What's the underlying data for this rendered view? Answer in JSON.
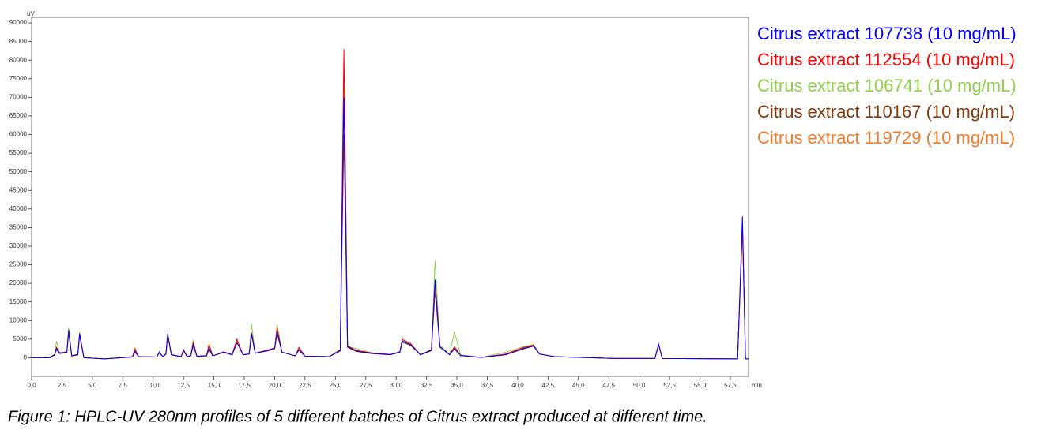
{
  "chart_data": {
    "type": "line",
    "x_label": "min",
    "y_label": "uV",
    "caption": "Figure 1: HPLC-UV 280nm profiles of 5 different batches of Citrus extract produced at different time.",
    "xlim": [
      0,
      59
    ],
    "ylim": [
      -5000,
      91500
    ],
    "xticks": [
      {
        "value": 0,
        "label": "0,0"
      },
      {
        "value": 2.5,
        "label": "2,5"
      },
      {
        "value": 5,
        "label": "5,0"
      },
      {
        "value": 7.5,
        "label": "7,5"
      },
      {
        "value": 10,
        "label": "10,0"
      },
      {
        "value": 12.5,
        "label": "12,5"
      },
      {
        "value": 15,
        "label": "15,0"
      },
      {
        "value": 17.5,
        "label": "17,5"
      },
      {
        "value": 20,
        "label": "20,0"
      },
      {
        "value": 22.5,
        "label": "22,5"
      },
      {
        "value": 25,
        "label": "25,0"
      },
      {
        "value": 27.5,
        "label": "27,5"
      },
      {
        "value": 30,
        "label": "30,0"
      },
      {
        "value": 32.5,
        "label": "32,5"
      },
      {
        "value": 35,
        "label": "35,0"
      },
      {
        "value": 37.5,
        "label": "37,5"
      },
      {
        "value": 40,
        "label": "40,0"
      },
      {
        "value": 42.5,
        "label": "42,5"
      },
      {
        "value": 45,
        "label": "45,0"
      },
      {
        "value": 47.5,
        "label": "47,5"
      },
      {
        "value": 50,
        "label": "50,0"
      },
      {
        "value": 52.5,
        "label": "52,5"
      },
      {
        "value": 55,
        "label": "55,0"
      },
      {
        "value": 57.5,
        "label": "57,5"
      }
    ],
    "yticks": [
      0,
      5000,
      10000,
      15000,
      20000,
      25000,
      30000,
      35000,
      40000,
      45000,
      50000,
      55000,
      60000,
      65000,
      70000,
      75000,
      80000,
      85000,
      90000
    ],
    "x": [
      0,
      1.5,
      1.9,
      2.05,
      2.3,
      2.9,
      3.05,
      3.3,
      3.8,
      3.95,
      4.3,
      6,
      8.3,
      8.5,
      8.8,
      10.3,
      10.5,
      10.8,
      11.05,
      11.2,
      11.5,
      12.3,
      12.5,
      12.8,
      13.1,
      13.3,
      13.6,
      14.4,
      14.6,
      14.9,
      15.8,
      16.5,
      16.9,
      17.4,
      17.9,
      18.1,
      18.4,
      19.5,
      20.0,
      20.2,
      20.6,
      21.7,
      22.0,
      22.5,
      24.5,
      25.4,
      25.7,
      26.0,
      26.7,
      28.0,
      29.5,
      30.3,
      30.5,
      31.2,
      32.0,
      32.9,
      33.2,
      33.6,
      34.4,
      34.8,
      35.3,
      37.0,
      39.0,
      40.5,
      41.3,
      41.8,
      43.0,
      48,
      51.3,
      51.6,
      51.9,
      58.1,
      58.5,
      58.75,
      59
    ],
    "series": [
      {
        "name": "Citrus extract 107738 (10 mg/mL)",
        "color": "#0000ff",
        "values": [
          0,
          0,
          800,
          2500,
          1200,
          1500,
          7500,
          500,
          800,
          6500,
          0,
          -300,
          200,
          1800,
          300,
          200,
          1500,
          300,
          1000,
          6500,
          800,
          300,
          2000,
          300,
          600,
          3500,
          400,
          500,
          2500,
          500,
          1500,
          800,
          4000,
          800,
          1000,
          6500,
          1200,
          2000,
          2500,
          7000,
          1500,
          500,
          2200,
          400,
          300,
          2000,
          70000,
          3000,
          1800,
          1200,
          800,
          1500,
          4500,
          3500,
          800,
          2000,
          21000,
          3000,
          800,
          2500,
          600,
          100,
          800,
          2500,
          3200,
          1000,
          300,
          -200,
          -200,
          3800,
          -200,
          -300,
          38000,
          -300,
          -300
        ]
      },
      {
        "name": "Citrus extract 112554 (10 mg/mL)",
        "color": "#ff0000",
        "values": [
          0,
          0,
          900,
          2800,
          1300,
          1600,
          7000,
          600,
          900,
          6000,
          0,
          -300,
          300,
          2500,
          300,
          200,
          1400,
          300,
          1100,
          6000,
          800,
          300,
          2200,
          300,
          600,
          4200,
          400,
          600,
          3500,
          500,
          1600,
          900,
          5000,
          800,
          1000,
          6800,
          1200,
          2200,
          2600,
          8000,
          1500,
          500,
          2800,
          400,
          300,
          2200,
          83000,
          3200,
          2000,
          1300,
          900,
          1600,
          5000,
          3800,
          800,
          2200,
          19000,
          3000,
          800,
          3000,
          600,
          100,
          1000,
          2800,
          3400,
          1000,
          300,
          -200,
          -200,
          3500,
          -200,
          -300,
          35000,
          -300,
          -300
        ]
      },
      {
        "name": "Citrus extract 106741 (10 mg/mL)",
        "color": "#92d050",
        "values": [
          0,
          0,
          1000,
          4500,
          1400,
          1500,
          8000,
          600,
          900,
          7000,
          0,
          -300,
          200,
          1800,
          300,
          200,
          1600,
          300,
          1000,
          6500,
          800,
          300,
          2000,
          300,
          600,
          4800,
          400,
          500,
          4000,
          500,
          1500,
          900,
          4500,
          800,
          1100,
          9000,
          1200,
          2100,
          2600,
          9000,
          1500,
          500,
          2500,
          400,
          300,
          2000,
          77000,
          3000,
          2500,
          1300,
          800,
          1500,
          4800,
          3600,
          800,
          2200,
          26000,
          3500,
          900,
          7000,
          800,
          100,
          1500,
          3000,
          3600,
          1000,
          300,
          -200,
          -200,
          3600,
          -200,
          -300,
          35000,
          -300,
          -300
        ]
      },
      {
        "name": "Citrus extract 110167 (10 mg/mL)",
        "color": "#843c0c",
        "values": [
          0,
          0,
          700,
          2200,
          1100,
          1400,
          6500,
          500,
          800,
          6000,
          0,
          -300,
          200,
          1500,
          300,
          200,
          1300,
          300,
          900,
          6000,
          800,
          300,
          1800,
          300,
          600,
          3200,
          400,
          500,
          2300,
          500,
          1400,
          800,
          4200,
          800,
          1000,
          6000,
          1200,
          1900,
          2400,
          6500,
          1500,
          500,
          2000,
          400,
          300,
          1800,
          60000,
          2800,
          1700,
          1100,
          800,
          1400,
          4200,
          3300,
          800,
          1900,
          18000,
          2800,
          800,
          2400,
          600,
          100,
          800,
          2400,
          3100,
          1000,
          300,
          -200,
          -200,
          3500,
          -200,
          -300,
          35000,
          -300,
          -300
        ]
      },
      {
        "name": "Citrus extract 119729 (10 mg/mL)",
        "color": "#ed7d31",
        "values": [
          0,
          0,
          800,
          2600,
          1200,
          1500,
          7200,
          500,
          800,
          6200,
          0,
          -300,
          200,
          2000,
          300,
          200,
          1500,
          300,
          1000,
          6300,
          800,
          300,
          2100,
          300,
          600,
          3800,
          400,
          500,
          3000,
          500,
          1500,
          800,
          4600,
          800,
          1000,
          6800,
          1200,
          2000,
          2500,
          7500,
          1500,
          500,
          2600,
          400,
          300,
          2000,
          78000,
          3000,
          1900,
          1200,
          800,
          1500,
          4700,
          3600,
          800,
          2100,
          20000,
          3000,
          800,
          2800,
          600,
          100,
          900,
          2600,
          3300,
          1000,
          300,
          -200,
          -200,
          3600,
          -200,
          -300,
          35500,
          -300,
          -300
        ]
      }
    ]
  }
}
